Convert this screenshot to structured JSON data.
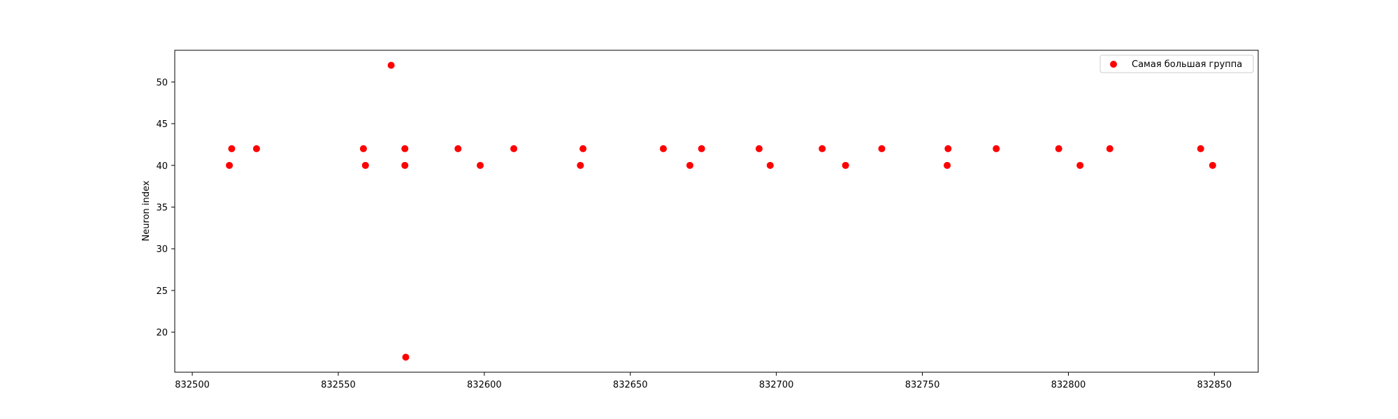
{
  "chart_data": {
    "type": "scatter",
    "title": "",
    "xlabel": "",
    "ylabel": "Neuron index",
    "xlim": [
      832494,
      832865
    ],
    "ylim": [
      15.2,
      53.8
    ],
    "xticks": [
      832500,
      832550,
      832600,
      832650,
      832700,
      832750,
      832800,
      832850
    ],
    "yticks": [
      20,
      25,
      30,
      35,
      40,
      45,
      50
    ],
    "grid": false,
    "legend_position": "top-right",
    "series": [
      {
        "name": "Самая большая группа",
        "color": "#ff0000",
        "points": [
          {
            "x": 832512.7,
            "y": 40
          },
          {
            "x": 832513.5,
            "y": 42
          },
          {
            "x": 832522.0,
            "y": 42
          },
          {
            "x": 832558.6,
            "y": 42
          },
          {
            "x": 832559.3,
            "y": 40
          },
          {
            "x": 832568.1,
            "y": 52
          },
          {
            "x": 832572.8,
            "y": 42
          },
          {
            "x": 832572.8,
            "y": 40
          },
          {
            "x": 832573.1,
            "y": 17
          },
          {
            "x": 832591.0,
            "y": 42
          },
          {
            "x": 832598.6,
            "y": 40
          },
          {
            "x": 832610.1,
            "y": 42
          },
          {
            "x": 832632.9,
            "y": 40
          },
          {
            "x": 832633.8,
            "y": 42
          },
          {
            "x": 832661.3,
            "y": 42
          },
          {
            "x": 832670.4,
            "y": 40
          },
          {
            "x": 832674.4,
            "y": 42
          },
          {
            "x": 832694.1,
            "y": 42
          },
          {
            "x": 832697.9,
            "y": 40
          },
          {
            "x": 832715.7,
            "y": 42
          },
          {
            "x": 832723.7,
            "y": 40
          },
          {
            "x": 832736.1,
            "y": 42
          },
          {
            "x": 832758.5,
            "y": 40
          },
          {
            "x": 832758.8,
            "y": 42
          },
          {
            "x": 832775.3,
            "y": 42
          },
          {
            "x": 832796.7,
            "y": 42
          },
          {
            "x": 832804.0,
            "y": 40
          },
          {
            "x": 832814.2,
            "y": 42
          },
          {
            "x": 832845.3,
            "y": 42
          },
          {
            "x": 832849.4,
            "y": 40
          }
        ]
      }
    ]
  }
}
